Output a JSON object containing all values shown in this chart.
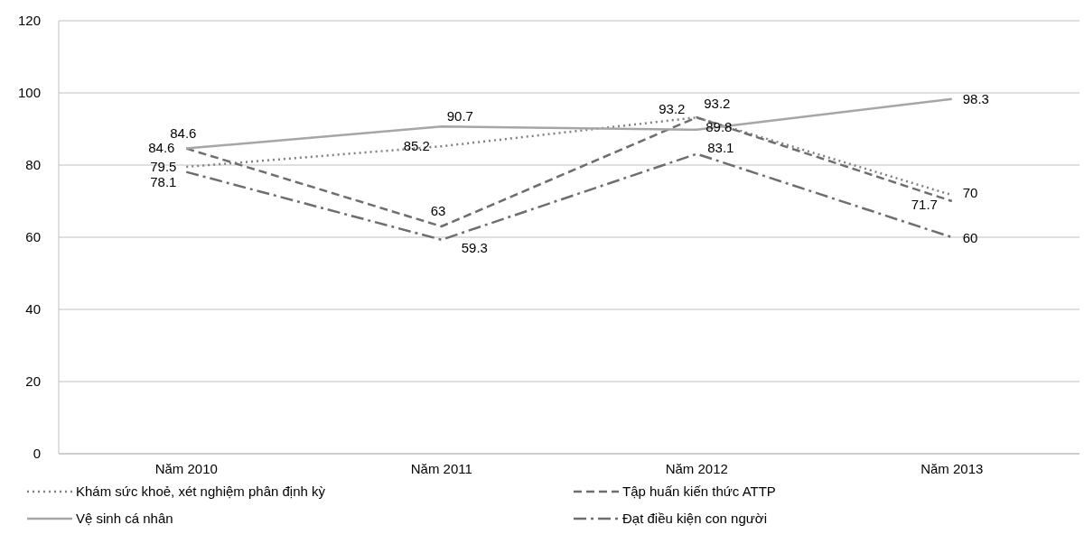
{
  "chart_data": {
    "type": "line",
    "categories": [
      "Năm 2010",
      "Năm 2011",
      "Năm 2012",
      "Năm 2013"
    ],
    "series": [
      {
        "name": "Khám sức khoẻ, xét nghiệm phân định kỳ",
        "color": "#808080",
        "line_style": "dotted",
        "values": [
          79.5,
          85.2,
          93.2,
          71.7
        ]
      },
      {
        "name": "Tập huấn kiến thức ATTP",
        "color": "#6e6e6e",
        "line_style": "dashed",
        "values": [
          84.6,
          63,
          93.2,
          70
        ]
      },
      {
        "name": "Vệ sinh cá nhân",
        "color": "#a6a6a6",
        "line_style": "solid",
        "values": [
          84.6,
          90.7,
          89.8,
          98.3
        ]
      },
      {
        "name": "Đạt điều kiện con người",
        "color": "#6e6e6e",
        "line_style": "dashdot",
        "values": [
          78.1,
          59.3,
          83.1,
          60
        ]
      }
    ],
    "ylim": [
      0,
      120
    ],
    "yticks": [
      0,
      20,
      40,
      60,
      80,
      100,
      120
    ],
    "grid": "y",
    "legend": "bottom",
    "data_labels": true
  }
}
